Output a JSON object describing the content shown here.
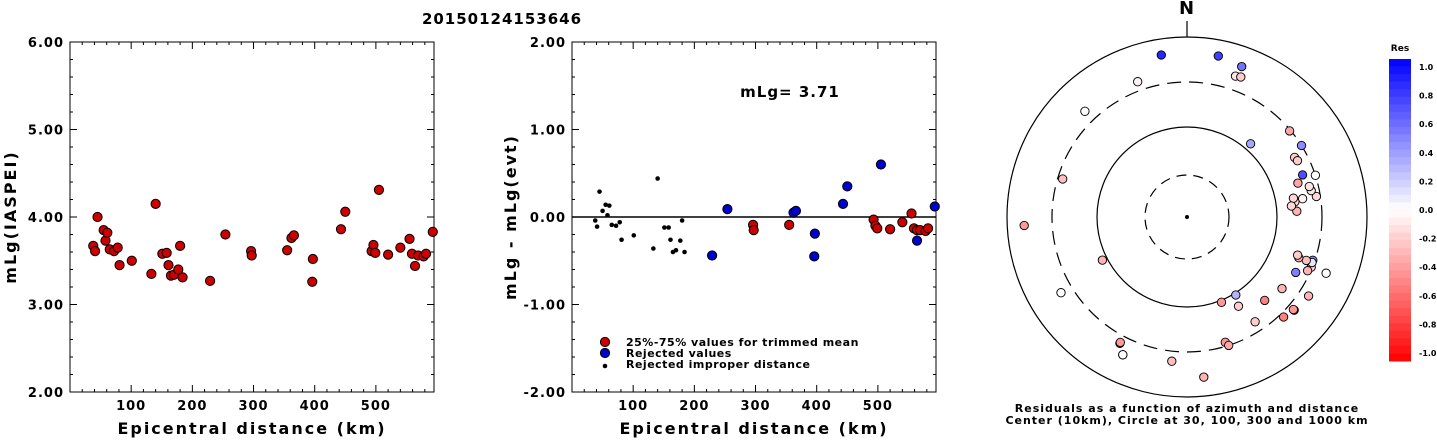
{
  "title": "20150124153646",
  "colors": {
    "kept": "#cc0000",
    "rejected": "#0000cc",
    "improper": "#000000"
  },
  "chart_data": [
    {
      "type": "scatter",
      "name": "left",
      "xlabel": "Epicentral distance (km)",
      "ylabel": "mLg(IASPEI)",
      "xlim": [
        0,
        595
      ],
      "ylim": [
        2,
        6
      ],
      "xticks": [
        "100",
        "200",
        "300",
        "400",
        "500"
      ],
      "yticks": [
        "2.00",
        "3.00",
        "4.00",
        "5.00",
        "6.00"
      ],
      "points": [
        [
          38,
          3.67
        ],
        [
          41,
          3.61
        ],
        [
          45,
          4.0
        ],
        [
          55,
          3.85
        ],
        [
          58,
          3.73
        ],
        [
          61,
          3.82
        ],
        [
          65,
          3.63
        ],
        [
          72,
          3.61
        ],
        [
          78,
          3.65
        ],
        [
          81,
          3.45
        ],
        [
          101,
          3.5
        ],
        [
          133,
          3.35
        ],
        [
          140,
          4.15
        ],
        [
          151,
          3.58
        ],
        [
          158,
          3.59
        ],
        [
          161,
          3.45
        ],
        [
          165,
          3.33
        ],
        [
          170,
          3.34
        ],
        [
          177,
          3.4
        ],
        [
          180,
          3.67
        ],
        [
          184,
          3.31
        ],
        [
          229,
          3.27
        ],
        [
          254,
          3.8
        ],
        [
          296,
          3.61
        ],
        [
          297,
          3.56
        ],
        [
          355,
          3.62
        ],
        [
          362,
          3.76
        ],
        [
          366,
          3.79
        ],
        [
          396,
          3.26
        ],
        [
          397,
          3.52
        ],
        [
          443,
          3.86
        ],
        [
          450,
          4.06
        ],
        [
          493,
          3.61
        ],
        [
          496,
          3.68
        ],
        [
          499,
          3.59
        ],
        [
          505,
          4.31
        ],
        [
          520,
          3.57
        ],
        [
          540,
          3.65
        ],
        [
          555,
          3.75
        ],
        [
          559,
          3.58
        ],
        [
          564,
          3.44
        ],
        [
          569,
          3.56
        ],
        [
          578,
          3.55
        ],
        [
          582,
          3.58
        ],
        [
          593,
          3.83
        ]
      ]
    },
    {
      "type": "scatter",
      "name": "middle",
      "xlabel": "Epicentral distance (km)",
      "ylabel": "mLg - mLg(evt)",
      "annotation": "mLg= 3.71",
      "xlim": [
        0,
        595
      ],
      "ylim": [
        -2,
        2
      ],
      "xticks": [
        "100",
        "200",
        "300",
        "400",
        "500"
      ],
      "yticks": [
        "-2.00",
        "-1.00",
        "0.00",
        "1.00",
        "2.00"
      ],
      "legend": [
        {
          "key": "kept",
          "label": "25%-75% values for trimmed mean"
        },
        {
          "key": "rejected",
          "label": "Rejected values"
        },
        {
          "key": "improper",
          "label": "Rejected improper distance"
        }
      ],
      "kept": [
        [
          296,
          -0.09
        ],
        [
          297,
          -0.15
        ],
        [
          355,
          -0.09
        ],
        [
          493,
          -0.03
        ],
        [
          496,
          -0.1
        ],
        [
          499,
          -0.13
        ],
        [
          520,
          -0.14
        ],
        [
          540,
          -0.06
        ],
        [
          555,
          0.04
        ],
        [
          559,
          -0.13
        ],
        [
          564,
          -0.15
        ],
        [
          569,
          -0.15
        ],
        [
          578,
          -0.16
        ],
        [
          582,
          -0.13
        ]
      ],
      "rejected": [
        [
          229,
          -0.44
        ],
        [
          254,
          0.09
        ],
        [
          362,
          0.05
        ],
        [
          366,
          0.07
        ],
        [
          396,
          -0.45
        ],
        [
          397,
          -0.19
        ],
        [
          443,
          0.15
        ],
        [
          450,
          0.35
        ],
        [
          505,
          0.6
        ],
        [
          564,
          -0.27
        ],
        [
          593,
          0.12
        ]
      ],
      "improper": [
        [
          38,
          -0.04
        ],
        [
          41,
          -0.11
        ],
        [
          45,
          0.29
        ],
        [
          50,
          0.07
        ],
        [
          55,
          0.14
        ],
        [
          58,
          0.02
        ],
        [
          61,
          0.13
        ],
        [
          65,
          -0.09
        ],
        [
          72,
          -0.1
        ],
        [
          78,
          -0.06
        ],
        [
          81,
          -0.26
        ],
        [
          101,
          -0.21
        ],
        [
          133,
          -0.36
        ],
        [
          140,
          0.44
        ],
        [
          151,
          -0.12
        ],
        [
          158,
          -0.12
        ],
        [
          161,
          -0.26
        ],
        [
          165,
          -0.4
        ],
        [
          170,
          -0.38
        ],
        [
          177,
          -0.27
        ],
        [
          180,
          -0.04
        ],
        [
          184,
          -0.4
        ]
      ]
    },
    {
      "type": "scatter",
      "name": "polar",
      "north_label": "N",
      "caption_lines": [
        "Residuals as a function of azimuth and distance",
        "Center (10km), Circle at 30, 100, 300 and 1000 km"
      ],
      "colorbar_title": "Res",
      "colorbar_ticks": [
        "1.0",
        "0.8",
        "0.6",
        "0.4",
        "0.2",
        "0.0",
        "-0.2",
        "-0.4",
        "-0.6",
        "-0.8",
        "-1.0"
      ],
      "rings_km": [
        30,
        100,
        300,
        1000
      ],
      "points": [
        [
          -9,
          164,
          0.85
        ],
        [
          11,
          164,
          0.75
        ],
        [
          20,
          160,
          0.55
        ],
        [
          19,
          149,
          -0.1
        ],
        [
          21,
          150,
          -0.2
        ],
        [
          -44,
          147,
          0.0
        ],
        [
          -20,
          144,
          -0.05
        ],
        [
          50,
          134,
          -0.35
        ],
        [
          58,
          135,
          0.45
        ],
        [
          81,
          131,
          -0.15
        ],
        [
          78,
          127,
          -0.1
        ],
        [
          76,
          126,
          -0.1
        ],
        [
          72,
          135,
          0.0
        ],
        [
          61,
          123,
          -0.2
        ],
        [
          63,
          124,
          -0.2
        ],
        [
          70,
          123,
          0.7
        ],
        [
          73,
          116,
          -0.35
        ],
        [
          81,
          117,
          -0.05
        ],
        [
          87,
          110,
          -0.3
        ],
        [
          82,
          109,
          -0.15
        ],
        [
          80,
          108,
          -0.15
        ],
        [
          84,
          105,
          -0.15
        ],
        [
          -73,
          130,
          -0.25
        ],
        [
          112,
          150,
          0.0
        ],
        [
          109,
          133,
          0.5
        ],
        [
          112,
          134,
          -0.2
        ],
        [
          110,
          133,
          0.1
        ],
        [
          110,
          127,
          -0.25
        ],
        [
          114,
          132,
          -0.3
        ],
        [
          110,
          119,
          -0.3
        ],
        [
          109,
          117,
          -0.2
        ],
        [
          131,
          142,
          0.45
        ],
        [
          123,
          145,
          -0.3
        ],
        [
          131,
          141,
          -0.4
        ],
        [
          136,
          139,
          -0.5
        ],
        [
          117,
          122,
          0.5
        ],
        [
          127,
          119,
          -0.3
        ],
        [
          137,
          114,
          -0.5
        ],
        [
          148,
          92,
          0.3
        ],
        [
          150,
          103,
          -0.2
        ],
        [
          147,
          125,
          -0.2
        ],
        [
          158,
          92,
          -0.4
        ],
        [
          163,
          131,
          -0.4
        ],
        [
          162,
          135,
          -0.35
        ],
        [
          174,
          161,
          -0.3
        ],
        [
          186,
          145,
          -0.25
        ],
        [
          -155,
          152,
          0.0
        ],
        [
          -152,
          143,
          -0.4
        ],
        [
          -152,
          142,
          -0.4
        ],
        [
          -117,
          95,
          -0.3
        ],
        [
          -121,
          147,
          0.0
        ],
        [
          -155,
          152,
          0.0
        ],
        [
          -93,
          163,
          -0.4
        ],
        [
          41,
          97,
          0.35
        ]
      ]
    }
  ]
}
